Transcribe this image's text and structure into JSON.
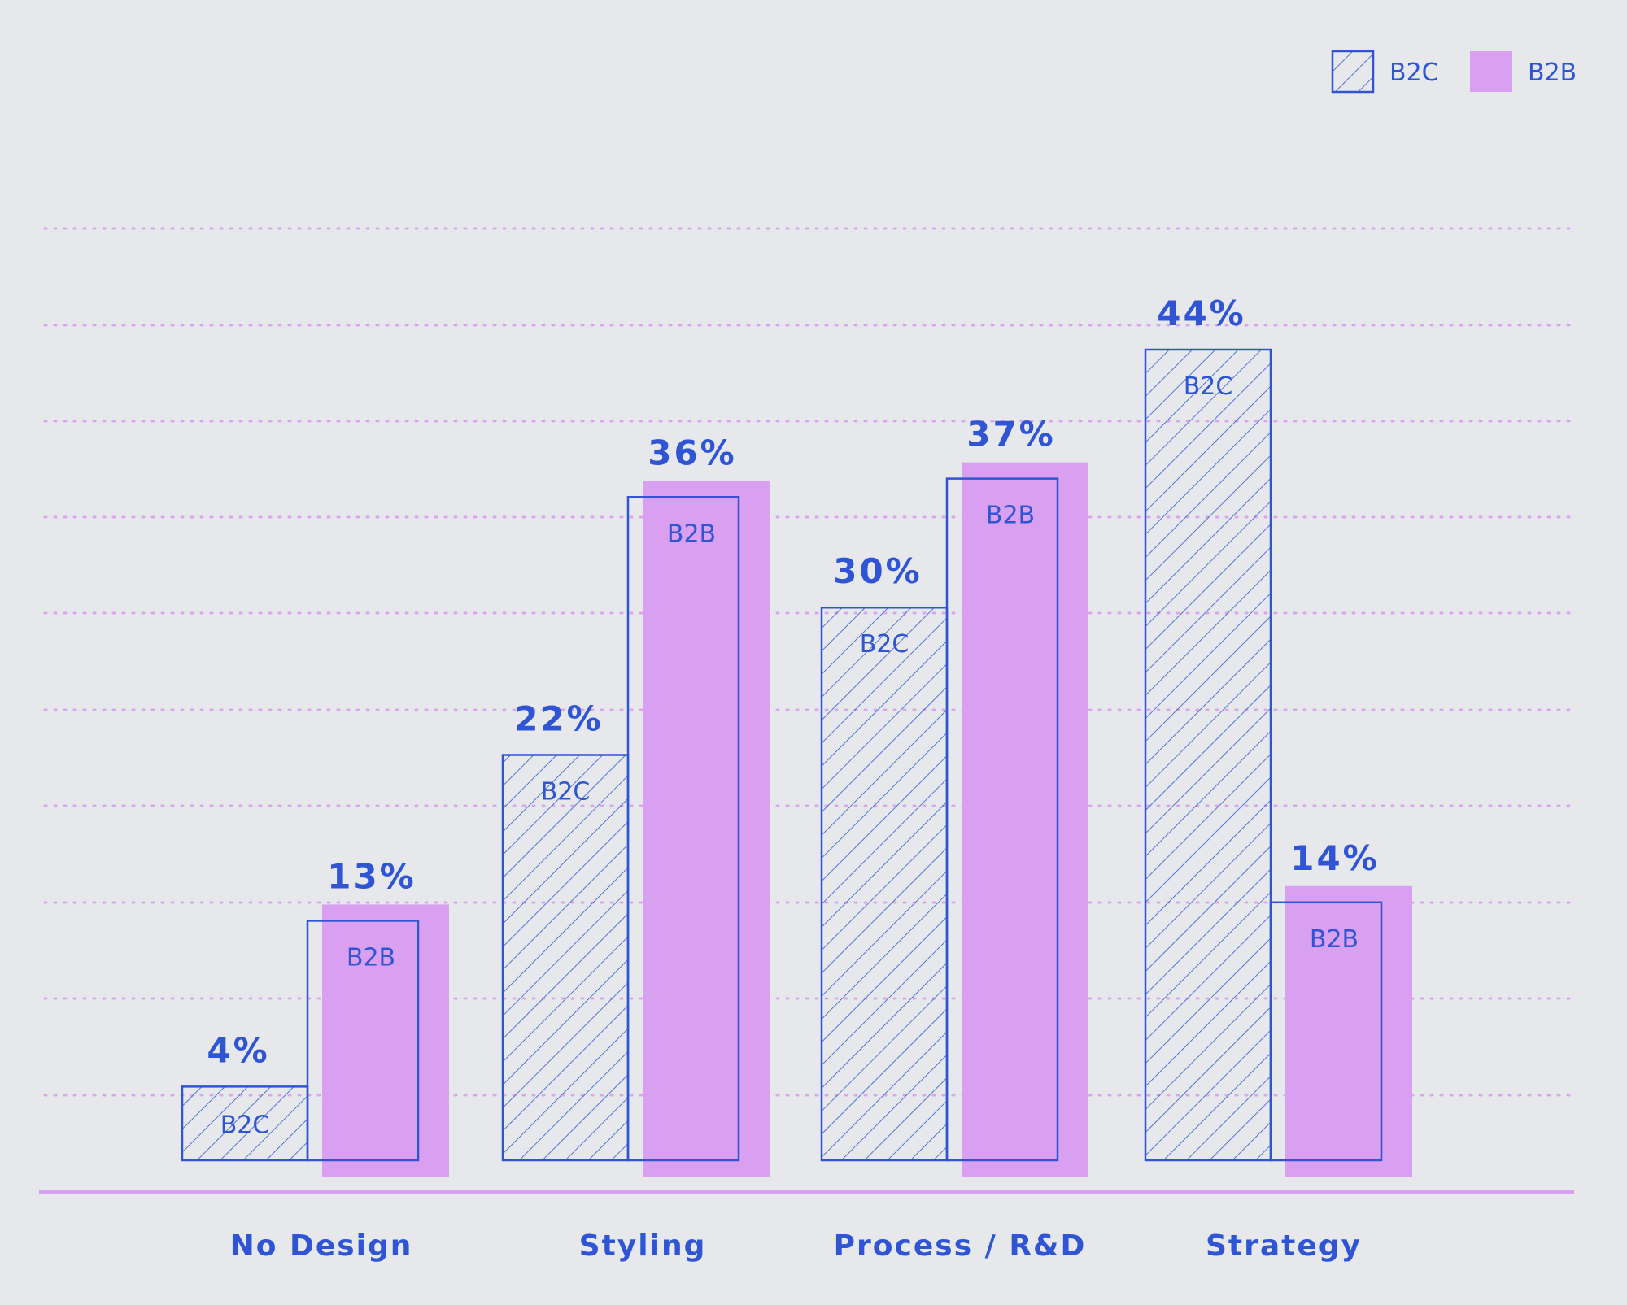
{
  "colors": {
    "background": "#e6e8ec",
    "blue": "#2f55d4",
    "pink": "#d99ff0",
    "grid": "#d9a6ec",
    "baseline": "#d99ff0"
  },
  "legend": {
    "b2c": "B2C",
    "b2b": "B2B"
  },
  "chart_data": {
    "type": "bar",
    "categories": [
      "No Design",
      "Styling",
      "Process / R&D",
      "Strategy"
    ],
    "series": [
      {
        "name": "B2C",
        "values": [
          4,
          22,
          30,
          44
        ],
        "labels": [
          "4%",
          "22%",
          "30%",
          "44%"
        ],
        "tag": "B2C",
        "style": "hatched-outline"
      },
      {
        "name": "B2B",
        "values": [
          13,
          36,
          37,
          14
        ],
        "labels": [
          "13%",
          "36%",
          "37%",
          "14%"
        ],
        "tag": "B2B",
        "style": "pink-fill-with-outline"
      }
    ],
    "ylim": [
      0,
      44
    ],
    "grid": "horizontal-dotted",
    "legend_position": "top-right"
  }
}
